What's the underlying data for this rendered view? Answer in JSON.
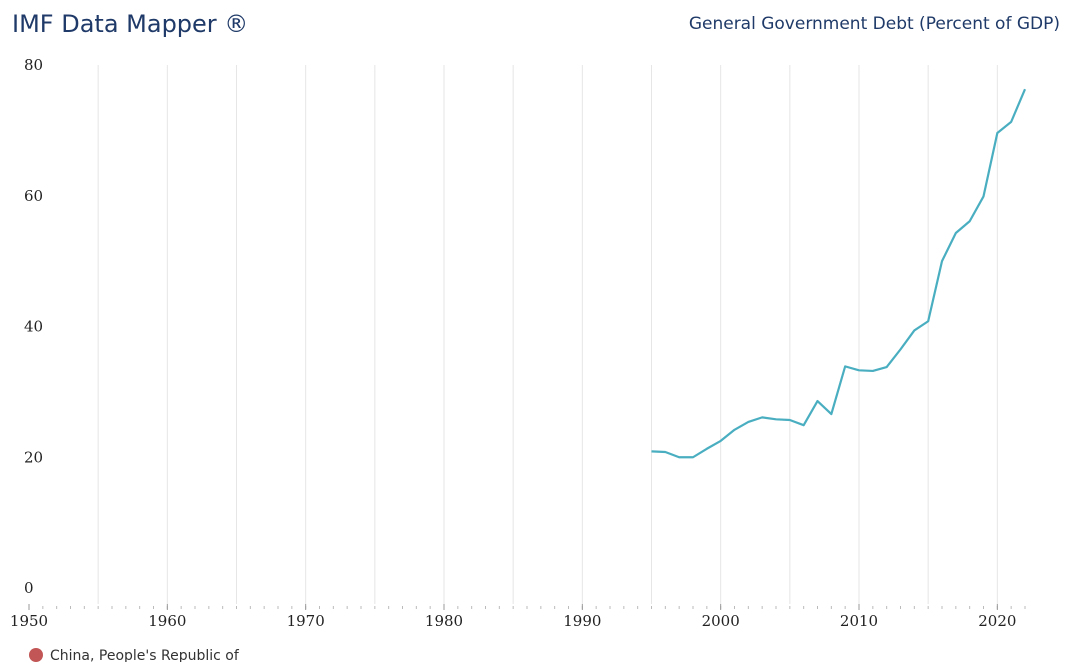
{
  "chart_data": {
    "type": "line",
    "title": "IMF Data Mapper ®",
    "subtitle": "General Government Debt (Percent of GDP)",
    "x": [
      1995,
      1996,
      1997,
      1998,
      1999,
      2000,
      2001,
      2002,
      2003,
      2004,
      2005,
      2006,
      2007,
      2008,
      2009,
      2010,
      2011,
      2012,
      2013,
      2014,
      2015,
      2016,
      2017,
      2018,
      2019,
      2020,
      2021,
      2022
    ],
    "series": [
      {
        "name": "China, People's Republic of",
        "color": "#4aaec1",
        "legend_color": "#c25555",
        "values": [
          20.9,
          20.8,
          20.0,
          20.0,
          21.3,
          22.5,
          24.2,
          25.4,
          26.1,
          25.8,
          25.7,
          24.9,
          28.6,
          26.6,
          33.9,
          33.3,
          33.2,
          33.8,
          36.5,
          39.4,
          40.8,
          50.0,
          54.3,
          56.1,
          59.9,
          69.6,
          71.3,
          76.3
        ]
      }
    ],
    "xlim": [
      1950,
      2022
    ],
    "xticks": [
      1950,
      1960,
      1970,
      1980,
      1990,
      2000,
      2010,
      2020
    ],
    "xgrid": [
      1955,
      1960,
      1965,
      1970,
      1975,
      1980,
      1985,
      1990,
      1995,
      2000,
      2005,
      2010,
      2015,
      2020
    ],
    "ylim": [
      0,
      80
    ],
    "yticks": [
      0,
      20,
      40,
      60,
      80
    ],
    "grid": true
  }
}
